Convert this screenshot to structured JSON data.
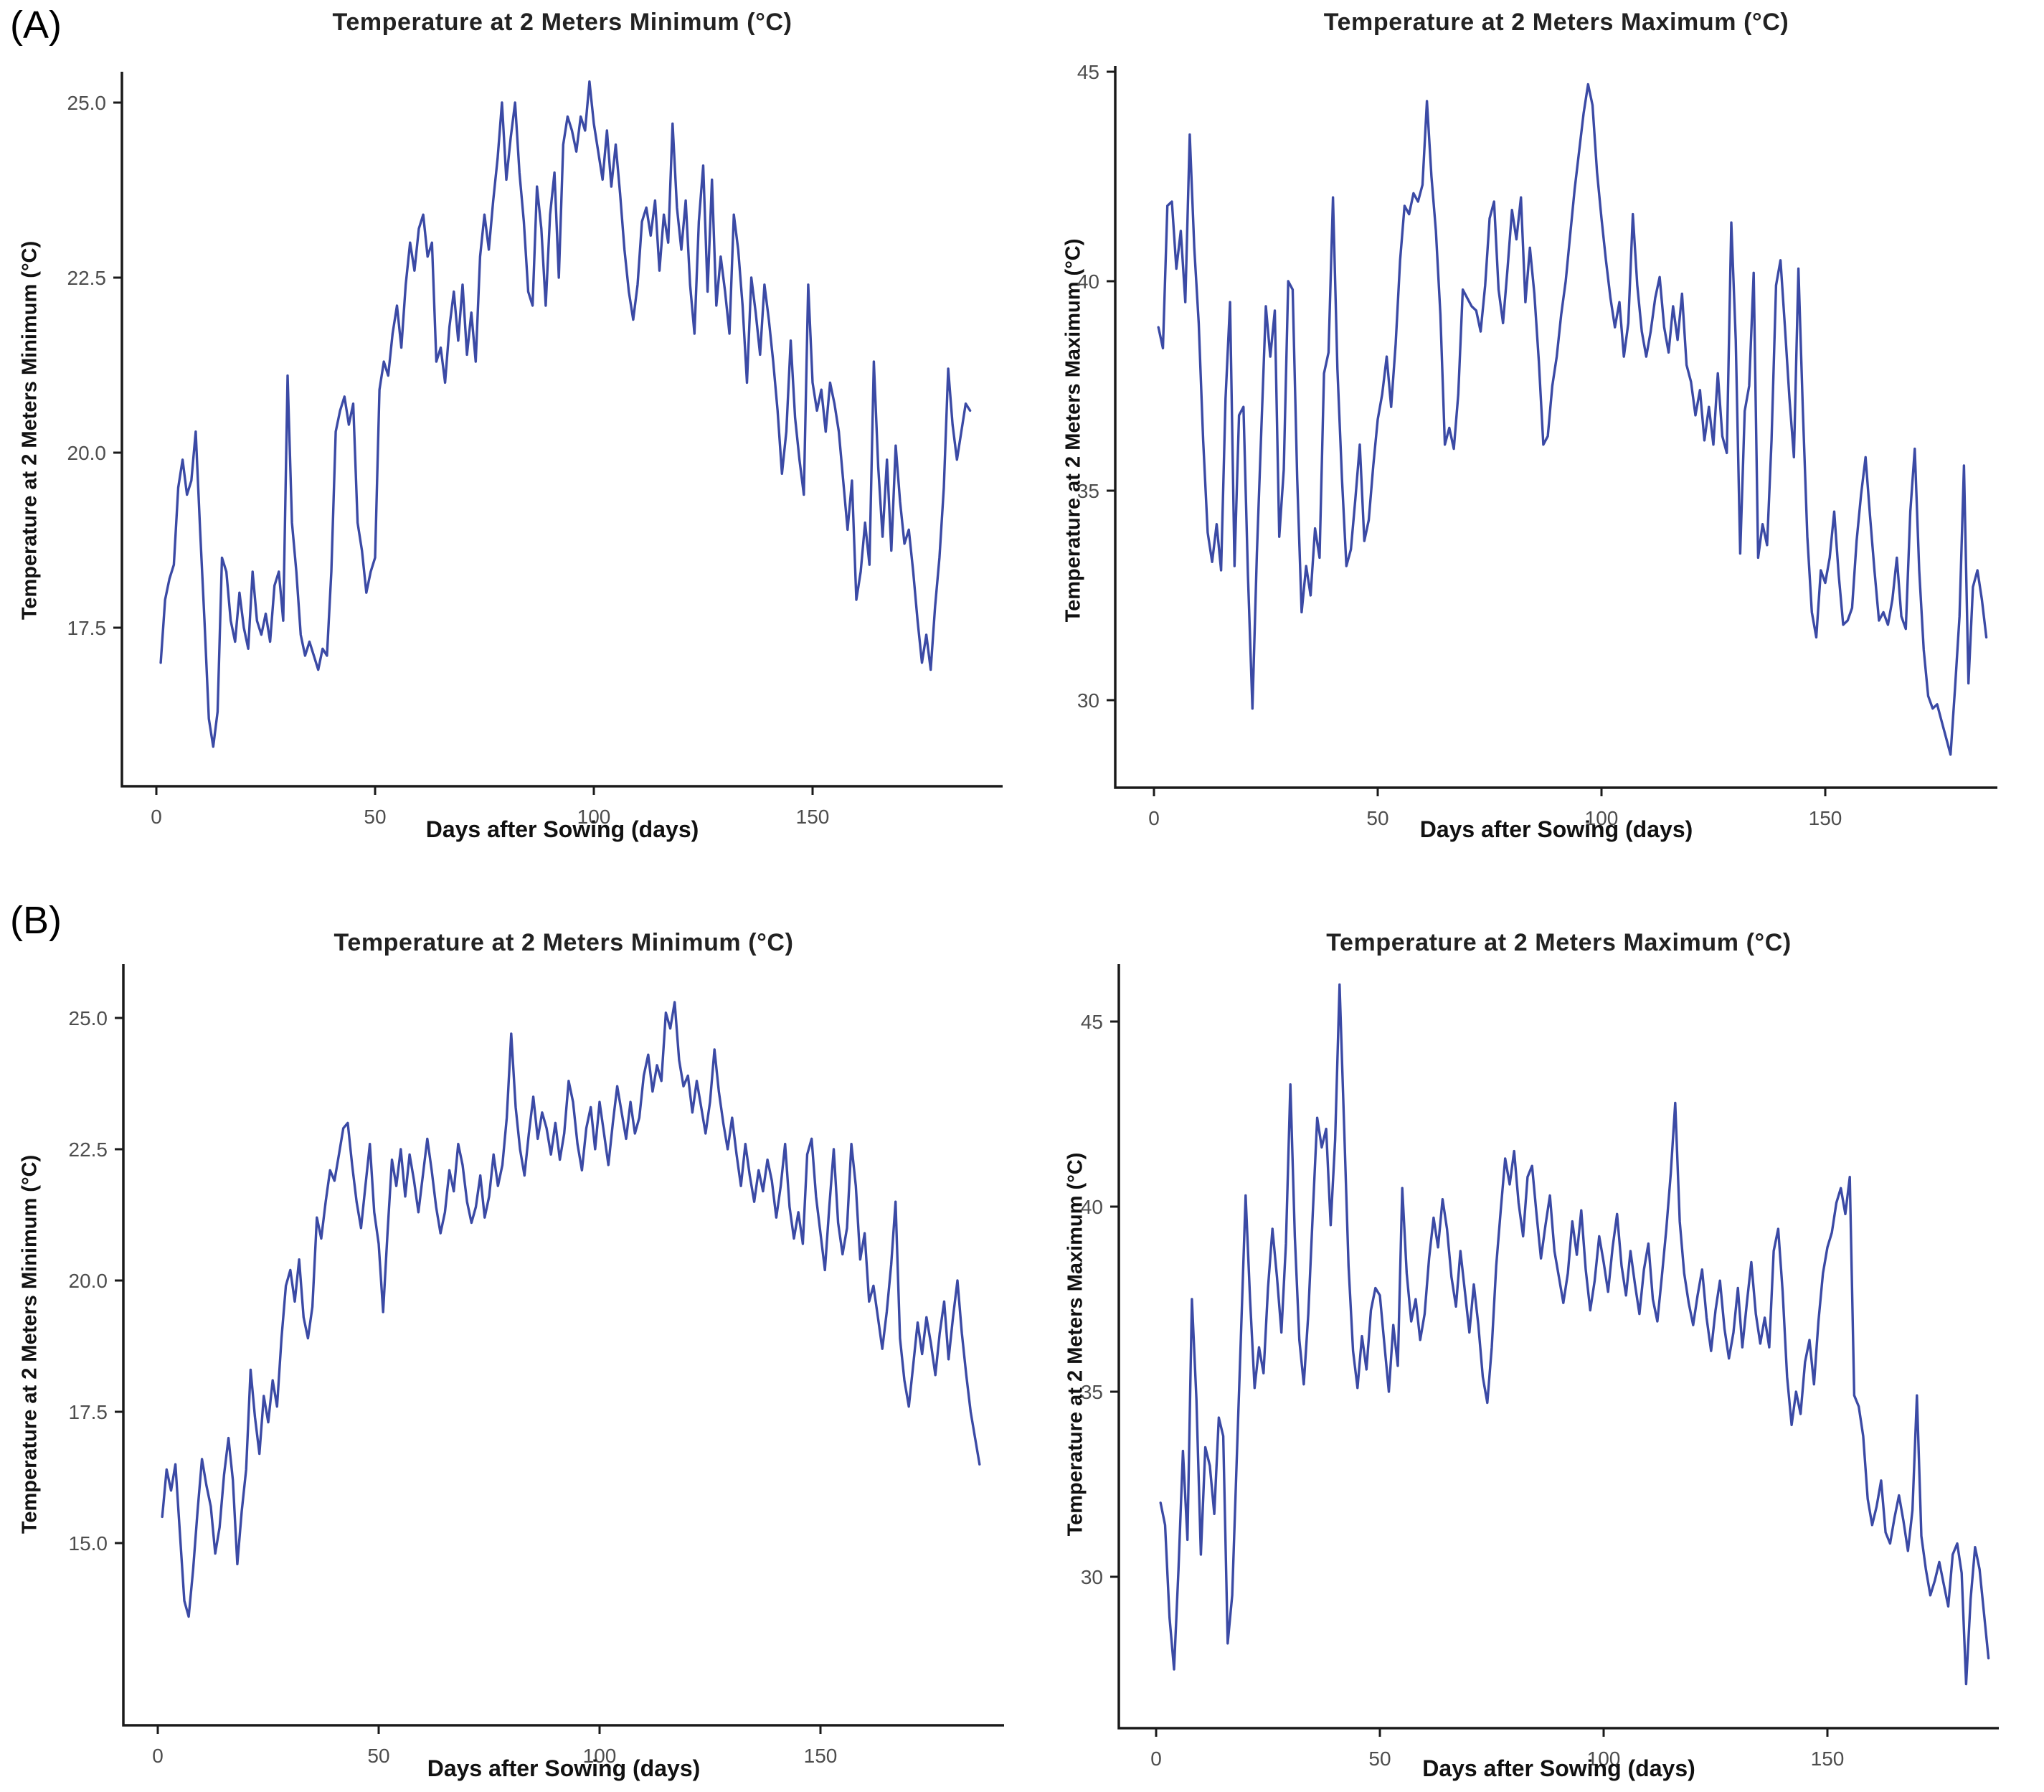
{
  "figure": {
    "label_a": "(A)",
    "label_b": "(B)",
    "line_color": "#3B4AA5",
    "axis_color": "#1a1a1a",
    "tick_label_color": "#4d4d4d",
    "background": "#ffffff"
  },
  "chart_data": [
    {
      "id": "panel-a-min",
      "type": "line",
      "title": "Temperature at 2 Meters Minimum (°C)",
      "xlabel": "Days after Sowing (days)",
      "ylabel": "Temperature at 2 Meters Minimum (°C)",
      "legend": "none",
      "grid": false,
      "xlim": [
        0,
        190
      ],
      "ylim": [
        15.2,
        25.6
      ],
      "x_ticks": [
        0,
        50,
        100,
        150
      ],
      "y_ticks": [
        25.0,
        22.5,
        20.0,
        17.5
      ],
      "y_tick_labels": [
        "25.0",
        "22.5",
        "20.0",
        "17.5"
      ],
      "x_start_day": 1,
      "x_step_days": 1,
      "values": [
        17.0,
        17.9,
        18.2,
        18.4,
        19.5,
        19.9,
        19.4,
        19.6,
        20.3,
        18.9,
        17.6,
        16.2,
        15.8,
        16.3,
        18.5,
        18.3,
        17.6,
        17.3,
        18.0,
        17.5,
        17.2,
        18.3,
        17.6,
        17.4,
        17.7,
        17.3,
        18.1,
        18.3,
        17.6,
        21.1,
        19.0,
        18.3,
        17.4,
        17.1,
        17.3,
        17.1,
        16.9,
        17.2,
        17.1,
        18.3,
        20.3,
        20.6,
        20.8,
        20.4,
        20.7,
        19.0,
        18.6,
        18.0,
        18.3,
        18.5,
        20.9,
        21.3,
        21.1,
        21.7,
        22.1,
        21.5,
        22.4,
        23.0,
        22.6,
        23.2,
        23.4,
        22.8,
        23.0,
        21.3,
        21.5,
        21.0,
        21.8,
        22.3,
        21.6,
        22.4,
        21.4,
        22.0,
        21.3,
        22.8,
        23.4,
        22.9,
        23.6,
        24.2,
        25.0,
        23.9,
        24.5,
        25.0,
        24.0,
        23.3,
        22.3,
        22.1,
        23.8,
        23.2,
        22.1,
        23.4,
        24.0,
        22.5,
        24.4,
        24.8,
        24.6,
        24.3,
        24.8,
        24.6,
        25.3,
        24.7,
        24.3,
        23.9,
        24.6,
        23.8,
        24.4,
        23.7,
        22.9,
        22.3,
        21.9,
        22.4,
        23.3,
        23.5,
        23.1,
        23.6,
        22.6,
        23.4,
        23.0,
        24.7,
        23.5,
        22.9,
        23.6,
        22.4,
        21.7,
        23.3,
        24.1,
        22.3,
        23.9,
        22.1,
        22.8,
        22.3,
        21.7,
        23.4,
        22.9,
        22.1,
        21.0,
        22.5,
        22.0,
        21.4,
        22.4,
        21.9,
        21.3,
        20.6,
        19.7,
        20.3,
        21.6,
        20.5,
        19.9,
        19.4,
        22.4,
        21.0,
        20.6,
        20.9,
        20.3,
        21.0,
        20.7,
        20.3,
        19.6,
        18.9,
        19.6,
        17.9,
        18.3,
        19.0,
        18.4,
        21.3,
        19.8,
        18.8,
        19.9,
        18.6,
        20.1,
        19.3,
        18.7,
        18.9,
        18.3,
        17.6,
        17.0,
        17.4,
        16.9,
        17.8,
        18.5,
        19.5,
        21.2,
        20.4,
        19.9,
        20.3,
        20.7,
        20.6
      ]
    },
    {
      "id": "panel-a-max",
      "type": "line",
      "title": "Temperature at 2 Meters Maximum (°C)",
      "xlabel": "Days after Sowing (days)",
      "ylabel": "Temperature at 2 Meters Maximum (°C)",
      "legend": "none",
      "grid": false,
      "xlim": [
        0,
        190
      ],
      "ylim": [
        27.9,
        45.5
      ],
      "x_ticks": [
        0,
        50,
        100,
        150
      ],
      "y_ticks": [
        45,
        40,
        35,
        30
      ],
      "y_tick_labels": [
        "45",
        "40",
        "35",
        "30"
      ],
      "x_start_day": 1,
      "x_step_days": 1,
      "values": [
        38.9,
        38.4,
        41.8,
        41.9,
        40.3,
        41.2,
        39.5,
        43.5,
        40.8,
        39.0,
        36.2,
        34.0,
        33.3,
        34.2,
        33.1,
        37.2,
        39.5,
        33.2,
        36.8,
        37.0,
        33.0,
        29.8,
        33.5,
        36.5,
        39.4,
        38.2,
        39.3,
        33.9,
        35.5,
        40.0,
        39.8,
        35.3,
        32.1,
        33.2,
        32.5,
        34.1,
        33.4,
        37.8,
        38.3,
        42.0,
        37.9,
        35.3,
        33.2,
        33.6,
        34.8,
        36.1,
        33.8,
        34.3,
        35.6,
        36.7,
        37.3,
        38.2,
        37.0,
        38.5,
        40.5,
        41.8,
        41.6,
        42.1,
        41.9,
        42.3,
        44.3,
        42.5,
        41.2,
        39.2,
        36.1,
        36.5,
        36.0,
        37.3,
        39.8,
        39.6,
        39.4,
        39.3,
        38.8,
        39.9,
        41.5,
        41.9,
        39.8,
        39.0,
        40.3,
        41.7,
        41.0,
        42.0,
        39.5,
        40.8,
        39.7,
        38.1,
        36.1,
        36.3,
        37.5,
        38.2,
        39.2,
        40.0,
        41.1,
        42.2,
        43.1,
        44.0,
        44.7,
        44.2,
        42.6,
        41.5,
        40.5,
        39.6,
        38.9,
        39.5,
        38.2,
        39.0,
        41.6,
        39.9,
        38.8,
        38.2,
        38.8,
        39.6,
        40.1,
        38.9,
        38.3,
        39.4,
        38.6,
        39.7,
        38.0,
        37.6,
        36.8,
        37.4,
        36.2,
        37.0,
        36.1,
        37.8,
        36.3,
        35.9,
        41.4,
        38.6,
        33.5,
        36.9,
        37.5,
        40.2,
        33.4,
        34.2,
        33.7,
        36.2,
        39.9,
        40.5,
        38.9,
        37.2,
        35.8,
        40.3,
        36.9,
        33.9,
        32.1,
        31.5,
        33.1,
        32.8,
        33.4,
        34.5,
        33.0,
        31.8,
        31.9,
        32.2,
        33.8,
        34.9,
        35.8,
        34.4,
        33.1,
        31.9,
        32.1,
        31.8,
        32.4,
        33.4,
        32.0,
        31.7,
        34.5,
        36.0,
        33.1,
        31.2,
        30.1,
        29.8,
        29.9,
        29.5,
        29.1,
        28.7,
        30.3,
        32.0,
        35.6,
        30.4,
        32.7,
        33.1,
        32.4,
        31.5
      ]
    },
    {
      "id": "panel-b-min",
      "type": "line",
      "title": "Temperature at 2 Meters Minimum (°C)",
      "xlabel": "Days after Sowing (days)",
      "ylabel": "Temperature at 2 Meters Minimum (°C)",
      "legend": "none",
      "grid": false,
      "xlim": [
        0,
        190
      ],
      "ylim": [
        13.3,
        25.6
      ],
      "x_ticks": [
        0,
        50,
        100,
        150
      ],
      "y_ticks": [
        25.0,
        22.5,
        20.0,
        17.5,
        15.0
      ],
      "y_tick_labels": [
        "25.0",
        "22.5",
        "20.0",
        "17.5",
        "15.0"
      ],
      "x_start_day": 1,
      "x_step_days": 1,
      "values": [
        15.5,
        16.4,
        16.0,
        16.5,
        15.2,
        13.9,
        13.6,
        14.5,
        15.6,
        16.6,
        16.1,
        15.7,
        14.8,
        15.3,
        16.3,
        17.0,
        16.2,
        14.6,
        15.6,
        16.4,
        18.3,
        17.4,
        16.7,
        17.8,
        17.3,
        18.1,
        17.6,
        18.9,
        19.9,
        20.2,
        19.6,
        20.4,
        19.3,
        18.9,
        19.5,
        21.2,
        20.8,
        21.5,
        22.1,
        21.9,
        22.4,
        22.9,
        23.0,
        22.2,
        21.5,
        21.0,
        21.8,
        22.6,
        21.3,
        20.7,
        19.4,
        20.9,
        22.3,
        21.8,
        22.5,
        21.6,
        22.4,
        21.9,
        21.3,
        22.0,
        22.7,
        22.1,
        21.4,
        20.9,
        21.3,
        22.1,
        21.7,
        22.6,
        22.2,
        21.5,
        21.1,
        21.4,
        22.0,
        21.2,
        21.6,
        22.4,
        21.8,
        22.2,
        23.1,
        24.7,
        23.3,
        22.5,
        22.0,
        22.8,
        23.5,
        22.7,
        23.2,
        22.9,
        22.4,
        23.0,
        22.3,
        22.8,
        23.8,
        23.4,
        22.6,
        22.1,
        22.9,
        23.3,
        22.5,
        23.4,
        22.8,
        22.2,
        23.0,
        23.7,
        23.2,
        22.7,
        23.4,
        22.8,
        23.1,
        23.9,
        24.3,
        23.6,
        24.1,
        23.8,
        25.1,
        24.8,
        25.3,
        24.2,
        23.7,
        23.9,
        23.2,
        23.8,
        23.3,
        22.8,
        23.4,
        24.4,
        23.6,
        23.0,
        22.5,
        23.1,
        22.4,
        21.8,
        22.6,
        22.0,
        21.5,
        22.1,
        21.7,
        22.3,
        21.9,
        21.2,
        21.8,
        22.6,
        21.4,
        20.8,
        21.3,
        20.7,
        22.4,
        22.7,
        21.6,
        20.9,
        20.2,
        21.4,
        22.5,
        21.1,
        20.5,
        21.0,
        22.6,
        21.8,
        20.4,
        20.9,
        19.6,
        19.9,
        19.3,
        18.7,
        19.4,
        20.3,
        21.5,
        18.9,
        18.1,
        17.6,
        18.4,
        19.2,
        18.6,
        19.3,
        18.8,
        18.2,
        19.0,
        19.6,
        18.5,
        19.3,
        20.0,
        19.0,
        18.2,
        17.5,
        17.0,
        16.5
      ]
    },
    {
      "id": "panel-b-max",
      "type": "line",
      "title": "Temperature at 2 Meters Maximum (°C)",
      "xlabel": "Days after Sowing (days)",
      "ylabel": "Temperature at 2 Meters Maximum (°C)",
      "legend": "none",
      "grid": false,
      "xlim": [
        0,
        190
      ],
      "ylim": [
        26.5,
        46.3
      ],
      "x_ticks": [
        0,
        50,
        100,
        150
      ],
      "y_ticks": [
        45,
        40,
        35,
        30
      ],
      "y_tick_labels": [
        "45",
        "40",
        "35",
        "30"
      ],
      "x_start_day": 1,
      "x_step_days": 1,
      "values": [
        32.0,
        31.4,
        28.9,
        27.5,
        30.2,
        33.4,
        31.0,
        37.5,
        34.8,
        30.6,
        33.5,
        33.0,
        31.7,
        34.3,
        33.8,
        28.2,
        29.5,
        33.1,
        36.7,
        40.3,
        37.5,
        35.1,
        36.2,
        35.5,
        37.8,
        39.4,
        38.1,
        36.6,
        39.0,
        43.3,
        39.2,
        36.4,
        35.2,
        37.1,
        39.8,
        42.4,
        41.6,
        42.1,
        39.5,
        41.8,
        46.0,
        42.2,
        38.4,
        36.1,
        35.1,
        36.5,
        35.6,
        37.2,
        37.8,
        37.6,
        36.3,
        35.0,
        36.8,
        35.7,
        40.5,
        38.2,
        36.9,
        37.5,
        36.4,
        37.1,
        38.6,
        39.7,
        38.9,
        40.2,
        39.4,
        38.1,
        37.3,
        38.8,
        37.7,
        36.6,
        37.9,
        36.8,
        35.4,
        34.7,
        36.2,
        38.4,
        39.9,
        41.3,
        40.6,
        41.5,
        40.1,
        39.2,
        40.8,
        41.1,
        39.8,
        38.6,
        39.5,
        40.3,
        38.8,
        38.1,
        37.4,
        38.2,
        39.6,
        38.7,
        39.9,
        38.3,
        37.2,
        38.0,
        39.2,
        38.5,
        37.7,
        38.9,
        39.8,
        38.4,
        37.6,
        38.8,
        37.9,
        37.1,
        38.3,
        39.0,
        37.5,
        36.9,
        38.1,
        39.4,
        40.9,
        42.8,
        39.6,
        38.2,
        37.4,
        36.8,
        37.6,
        38.3,
        37.0,
        36.1,
        37.2,
        38.0,
        36.7,
        35.9,
        36.6,
        37.8,
        36.2,
        37.4,
        38.5,
        37.1,
        36.3,
        37.0,
        36.2,
        38.8,
        39.4,
        37.7,
        35.4,
        34.1,
        35.0,
        34.4,
        35.8,
        36.4,
        35.2,
        36.9,
        38.2,
        38.9,
        39.3,
        40.1,
        40.5,
        39.8,
        40.8,
        34.9,
        34.6,
        33.8,
        32.1,
        31.4,
        31.9,
        32.6,
        31.2,
        30.9,
        31.6,
        32.2,
        31.5,
        30.7,
        31.8,
        34.9,
        31.1,
        30.2,
        29.5,
        29.9,
        30.4,
        29.8,
        29.2,
        30.6,
        30.9,
        30.1,
        27.1,
        29.4,
        30.8,
        30.2,
        29.0,
        27.8
      ]
    }
  ]
}
